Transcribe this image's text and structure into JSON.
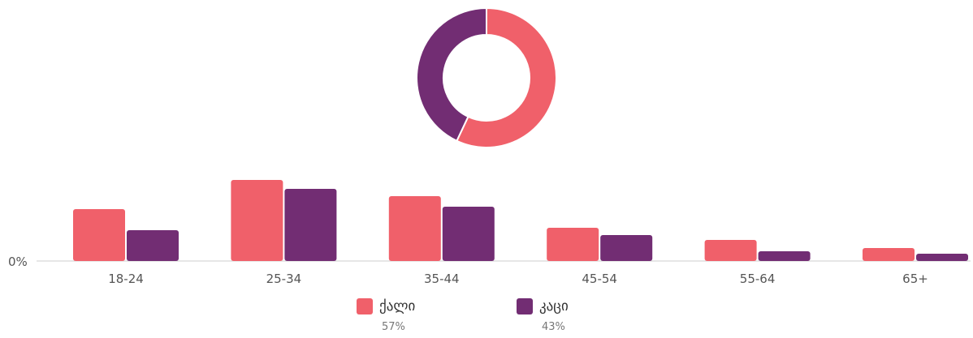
{
  "chart_data": [
    {
      "type": "pie",
      "variant": "donut",
      "slices": [
        {
          "name": "ქალი",
          "value": 57,
          "color": "#f0606a"
        },
        {
          "name": "კაცი",
          "value": 43,
          "color": "#722d73"
        }
      ]
    },
    {
      "type": "bar",
      "categories": [
        "18-24",
        "25-34",
        "35-44",
        "45-54",
        "55-64",
        "65+"
      ],
      "series": [
        {
          "name": "ქალი",
          "color": "#f0606a",
          "values": [
            64,
            100,
            80,
            41,
            26,
            16
          ]
        },
        {
          "name": "კაცი",
          "color": "#722d73",
          "values": [
            38,
            89,
            67,
            32,
            12,
            9
          ]
        }
      ],
      "ylim": [
        0,
        100
      ],
      "y_tick_label": "0%",
      "legend_position": "bottom"
    }
  ],
  "legend": [
    {
      "label": "ქალი",
      "percent": "57%",
      "color": "#f0606a"
    },
    {
      "label": "კაცი",
      "percent": "43%",
      "color": "#722d73"
    }
  ]
}
